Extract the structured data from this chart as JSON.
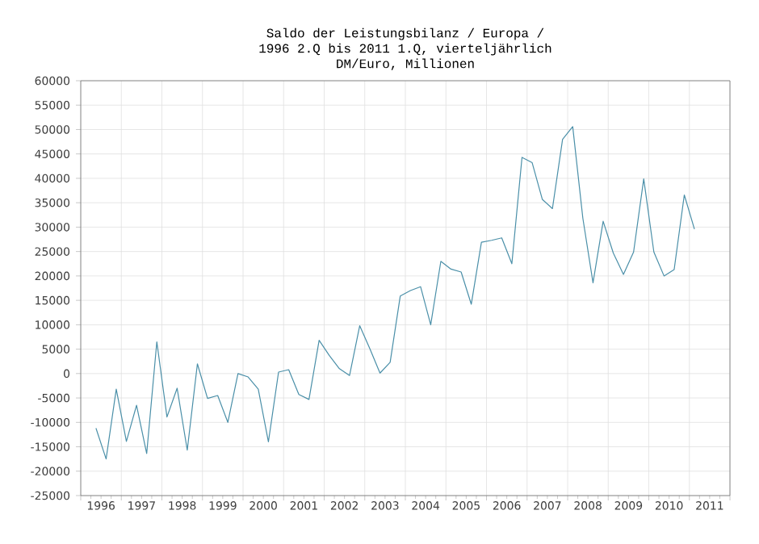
{
  "chart_data": {
    "type": "line",
    "title": "Saldo der Leistungsbilanz / Europa /",
    "subtitle": "1996 2.Q bis 2011 1.Q, vierteljährlich",
    "ylabel": "DM/Euro, Millionen",
    "x": [
      1996.375,
      1996.625,
      1996.875,
      1997.125,
      1997.375,
      1997.625,
      1997.875,
      1998.125,
      1998.375,
      1998.625,
      1998.875,
      1999.125,
      1999.375,
      1999.625,
      1999.875,
      2000.125,
      2000.375,
      2000.625,
      2000.875,
      2001.125,
      2001.375,
      2001.625,
      2001.875,
      2002.125,
      2002.375,
      2002.625,
      2002.875,
      2003.125,
      2003.375,
      2003.625,
      2003.875,
      2004.125,
      2004.375,
      2004.625,
      2004.875,
      2005.125,
      2005.375,
      2005.625,
      2005.875,
      2006.125,
      2006.375,
      2006.625,
      2006.875,
      2007.125,
      2007.375,
      2007.625,
      2007.875,
      2008.125,
      2008.375,
      2008.625,
      2008.875,
      2009.125,
      2009.375,
      2009.625,
      2009.875,
      2010.125,
      2010.375,
      2010.625,
      2010.875,
      2011.125
    ],
    "series": [
      {
        "color": "#4a8fa8",
        "values": [
          -11200,
          -17500,
          -3200,
          -13900,
          -6500,
          -16400,
          6500,
          -8900,
          -3000,
          -15700,
          2000,
          -5100,
          -4500,
          -10000,
          0,
          -700,
          -3200,
          -14000,
          300,
          800,
          -4300,
          -5300,
          6800,
          3700,
          1000,
          -400,
          9800,
          5100,
          100,
          2300,
          15900,
          17000,
          17800,
          10000,
          23000,
          21400,
          20800,
          14200,
          26900,
          27300,
          27800,
          22500,
          44300,
          43200,
          35700,
          33800,
          48000,
          50600,
          31800,
          18600,
          31200,
          24700,
          20300,
          24900,
          39900,
          24900,
          20000,
          21300,
          36600,
          29600
        ]
      }
    ],
    "xlim": [
      1996,
      2012
    ],
    "xticks": [
      {
        "value": 1996,
        "label": null
      },
      {
        "value": 1996.5,
        "label": "1996"
      },
      {
        "value": 1997,
        "label": null
      },
      {
        "value": 1997.5,
        "label": "1997"
      },
      {
        "value": 1998,
        "label": null
      },
      {
        "value": 1998.5,
        "label": "1998"
      },
      {
        "value": 1999,
        "label": null
      },
      {
        "value": 1999.5,
        "label": "1999"
      },
      {
        "value": 2000,
        "label": null
      },
      {
        "value": 2000.5,
        "label": "2000"
      },
      {
        "value": 2001,
        "label": null
      },
      {
        "value": 2001.5,
        "label": "2001"
      },
      {
        "value": 2002,
        "label": null
      },
      {
        "value": 2002.5,
        "label": "2002"
      },
      {
        "value": 2003,
        "label": null
      },
      {
        "value": 2003.5,
        "label": "2003"
      },
      {
        "value": 2004,
        "label": null
      },
      {
        "value": 2004.5,
        "label": "2004"
      },
      {
        "value": 2005,
        "label": null
      },
      {
        "value": 2005.5,
        "label": "2005"
      },
      {
        "value": 2006,
        "label": null
      },
      {
        "value": 2006.5,
        "label": "2006"
      },
      {
        "value": 2007,
        "label": null
      },
      {
        "value": 2007.5,
        "label": "2007"
      },
      {
        "value": 2008,
        "label": null
      },
      {
        "value": 2008.5,
        "label": "2008"
      },
      {
        "value": 2009,
        "label": null
      },
      {
        "value": 2009.5,
        "label": "2009"
      },
      {
        "value": 2010,
        "label": null
      },
      {
        "value": 2010.5,
        "label": "2010"
      },
      {
        "value": 2011,
        "label": null
      },
      {
        "value": 2011.5,
        "label": "2011"
      },
      {
        "value": 2012,
        "label": null
      }
    ],
    "ylim": [
      -25000,
      60000
    ],
    "yticks": [
      -25000,
      -20000,
      -15000,
      -10000,
      -5000,
      0,
      5000,
      10000,
      15000,
      20000,
      25000,
      30000,
      35000,
      40000,
      45000,
      50000,
      55000,
      60000
    ],
    "grid": true,
    "marker": "none",
    "line_style": "solid"
  }
}
